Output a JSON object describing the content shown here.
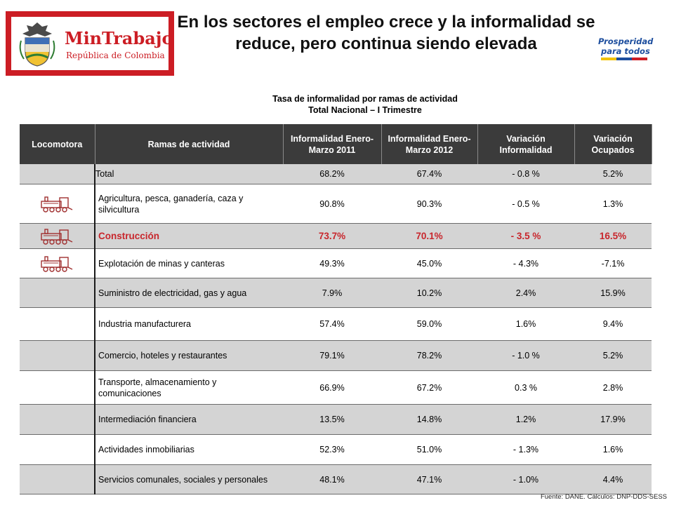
{
  "header": {
    "logo_title": "MinTrabajo",
    "logo_subtitle": "República de Colombia",
    "title": "En los sectores el empleo crece y la informalidad se reduce, pero continua siendo elevada",
    "badge_line1": "Prosperidad",
    "badge_line2": "para todos"
  },
  "table_title": {
    "line1": "Tasa de informalidad por ramas de actividad",
    "line2": "Total Nacional – I Trimestre"
  },
  "table": {
    "columns": [
      "Locomotora",
      "Ramas de actividad",
      "Informalidad Enero-Marzo 2011",
      "Informalidad Enero-Marzo 2012",
      "Variación Informalidad",
      "Variación Ocupados"
    ],
    "rows": [
      {
        "rama": "Total",
        "inf2011": "68.2%",
        "inf2012": "67.4%",
        "var_inf": "- 0.8 %",
        "var_ocup": "5.2%"
      },
      {
        "rama": "Agricultura, pesca, ganadería, caza y silvicultura",
        "inf2011": "90.8%",
        "inf2012": "90.3%",
        "var_inf": "- 0.5 %",
        "var_ocup": "1.3%"
      },
      {
        "rama": "Construcción",
        "inf2011": "73.7%",
        "inf2012": "70.1%",
        "var_inf": "- 3.5 %",
        "var_ocup": "16.5%"
      },
      {
        "rama": "Explotación de minas y canteras",
        "inf2011": "49.3%",
        "inf2012": "45.0%",
        "var_inf": "- 4.3%",
        "var_ocup": "-7.1%"
      },
      {
        "rama": "Suministro de electricidad, gas y agua",
        "inf2011": "7.9%",
        "inf2012": "10.2%",
        "var_inf": "2.4%",
        "var_ocup": "15.9%"
      },
      {
        "rama": "Industria manufacturera",
        "inf2011": "57.4%",
        "inf2012": "59.0%",
        "var_inf": "1.6%",
        "var_ocup": "9.4%"
      },
      {
        "rama": "Comercio, hoteles y restaurantes",
        "inf2011": "79.1%",
        "inf2012": "78.2%",
        "var_inf": "- 1.0 %",
        "var_ocup": "5.2%"
      },
      {
        "rama": "Transporte, almacenamiento y comunicaciones",
        "inf2011": "66.9%",
        "inf2012": "67.2%",
        "var_inf": "0.3 %",
        "var_ocup": "2.8%"
      },
      {
        "rama": "Intermediación financiera",
        "inf2011": "13.5%",
        "inf2012": "14.8%",
        "var_inf": "1.2%",
        "var_ocup": "17.9%"
      },
      {
        "rama": "Actividades inmobiliarias",
        "inf2011": "52.3%",
        "inf2012": "51.0%",
        "var_inf": "- 1.3%",
        "var_ocup": "1.6%"
      },
      {
        "rama": "Servicios comunales, sociales y personales",
        "inf2011": "48.1%",
        "inf2012": "47.1%",
        "var_inf": "- 1.0%",
        "var_ocup": "4.4%"
      }
    ]
  },
  "source": "Fuente: DANE. Cálculos: DNP-DDS-SESS",
  "colors": {
    "brand_red": "#cc1d24",
    "highlight_red": "#c8262c",
    "header_dark": "#3b3b3b",
    "row_gray": "#d4d4d4",
    "badge_blue": "#1d4e9e"
  },
  "icons": {
    "logo": "colombia-shield-icon",
    "locomotora": "train-icon"
  }
}
